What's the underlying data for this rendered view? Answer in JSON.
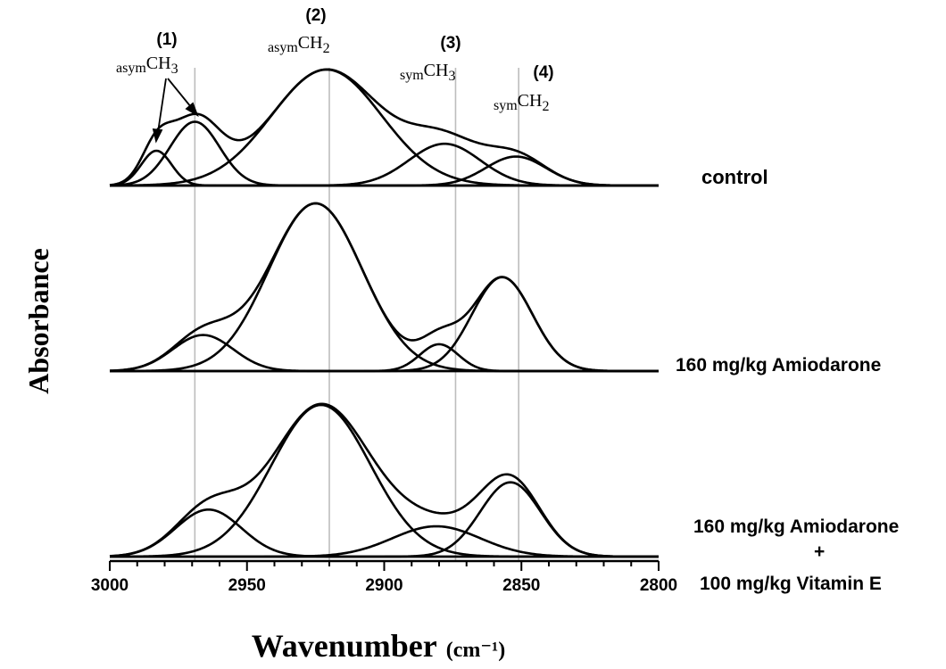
{
  "chart_data": {
    "type": "line",
    "title": "",
    "xlabel": "Wavenumber",
    "xlabel_unit": "(cm⁻¹)",
    "ylabel": "Absorbance",
    "xlim": [
      3000,
      2800
    ],
    "x_reversed": true,
    "xticks": [
      "3000",
      "2950",
      "2900",
      "2850",
      "2800"
    ],
    "reference_lines": [
      2969,
      2920,
      2874,
      2851
    ],
    "peak_annotations": [
      {
        "number": "(1)",
        "prefix": "asym",
        "group": "CH",
        "sub": "3"
      },
      {
        "number": "(2)",
        "prefix": "asym",
        "group": "CH",
        "sub": "2"
      },
      {
        "number": "(3)",
        "prefix": "sym",
        "group": "CH",
        "sub": "3"
      },
      {
        "number": "(4)",
        "prefix": "sym",
        "group": "CH",
        "sub": "2"
      }
    ],
    "panels": [
      {
        "label_lines": [
          "control"
        ],
        "components": [
          {
            "center": 2983,
            "height": 0.3,
            "width": 5.5
          },
          {
            "center": 2969,
            "height": 0.55,
            "width": 9
          },
          {
            "center": 2921,
            "height": 1.0,
            "width": 20
          },
          {
            "center": 2878,
            "height": 0.36,
            "width": 13
          },
          {
            "center": 2852,
            "height": 0.25,
            "width": 11
          }
        ]
      },
      {
        "label_lines": [
          "160 mg/kg Amiodarone"
        ],
        "components": [
          {
            "center": 2966,
            "height": 0.215,
            "width": 11
          },
          {
            "center": 2925,
            "height": 1.0,
            "width": 17
          },
          {
            "center": 2880,
            "height": 0.16,
            "width": 7
          },
          {
            "center": 2857,
            "height": 0.56,
            "width": 11
          }
        ]
      },
      {
        "label_lines": [
          "160 mg/kg Amiodarone",
          "+",
          "100 mg/kg Vitamin E"
        ],
        "components": [
          {
            "center": 2964,
            "height": 0.31,
            "width": 12
          },
          {
            "center": 2923,
            "height": 1.0,
            "width": 18
          },
          {
            "center": 2881,
            "height": 0.2,
            "width": 16
          },
          {
            "center": 2854,
            "height": 0.49,
            "width": 11
          }
        ]
      }
    ],
    "grid": false,
    "legend": "none"
  }
}
